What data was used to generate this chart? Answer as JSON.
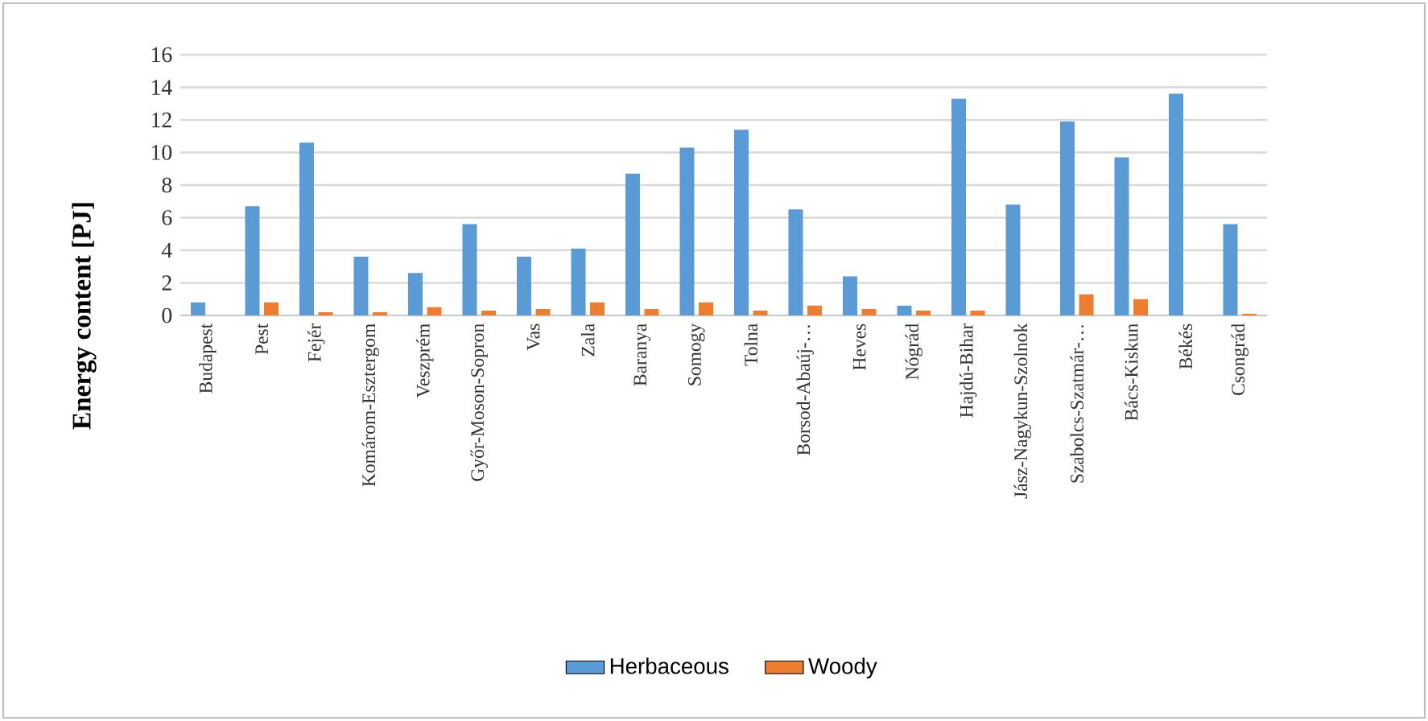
{
  "chart_data": {
    "type": "bar",
    "ylabel": "Energy content [PJ]",
    "categories": [
      "Budapest",
      "Pest",
      "Fejér",
      "Komárom-Esztergom",
      "Veszprém",
      "Győr-Moson-Sopron",
      "Vas",
      "Zala",
      "Baranya",
      "Somogy",
      "Tolna",
      "Borsod-Abaúj-…",
      "Heves",
      "Nógrád",
      "Hajdú-Bihar",
      "Jász-Nagykun-Szolnok",
      "Szabolcs-Szatmár-…",
      "Bács-Kiskun",
      "Békés",
      "Csongrád"
    ],
    "series": [
      {
        "name": "Herbaceous",
        "color": "#5b9bd5",
        "values": [
          0.8,
          6.7,
          10.6,
          3.6,
          2.6,
          5.6,
          3.6,
          4.1,
          8.7,
          10.3,
          11.4,
          6.5,
          2.4,
          0.6,
          13.3,
          6.8,
          11.9,
          9.7,
          13.6,
          5.6
        ]
      },
      {
        "name": "Woody",
        "color": "#ed7d31",
        "values": [
          0,
          0.8,
          0.2,
          0.2,
          0.5,
          0.3,
          0.4,
          0.8,
          0.4,
          0.8,
          0.3,
          0.6,
          0.4,
          0.3,
          0.3,
          0,
          1.3,
          1.0,
          0,
          0.1
        ]
      }
    ],
    "ylim": [
      0,
      16
    ],
    "yticks": [
      0,
      2,
      4,
      6,
      8,
      10,
      12,
      14,
      16
    ],
    "grid": "y",
    "legend": "bottom"
  }
}
